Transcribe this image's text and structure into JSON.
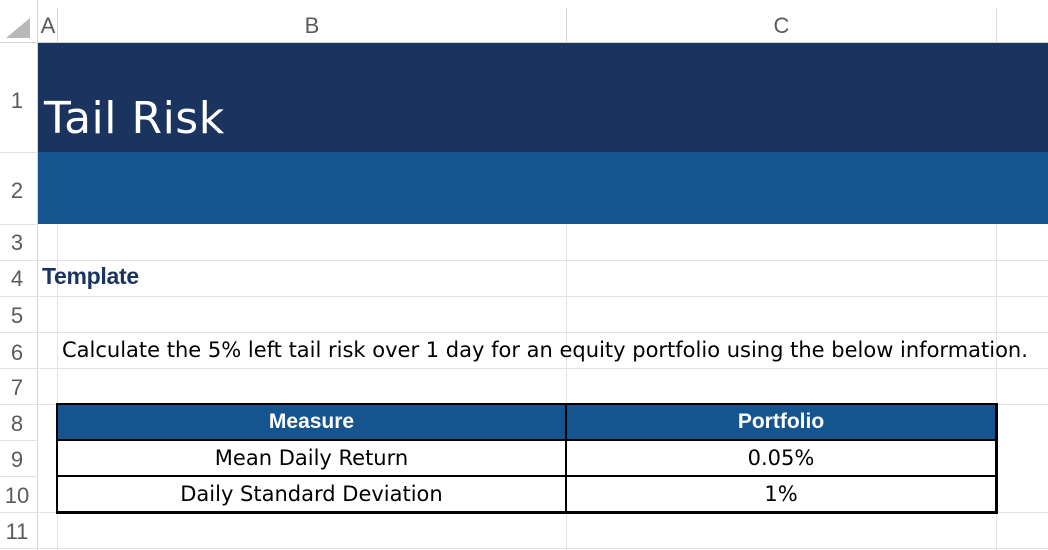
{
  "columns": [
    "A",
    "B",
    "C"
  ],
  "rows": [
    "1",
    "2",
    "3",
    "4",
    "5",
    "6",
    "7",
    "8",
    "9",
    "10",
    "11"
  ],
  "sheet": {
    "title": "Tail Risk",
    "section_label": "Template",
    "instruction": "Calculate the 5% left tail risk over 1 day for an equity portfolio using the below information."
  },
  "table": {
    "headers": [
      "Measure",
      "Portfolio"
    ],
    "rows": [
      [
        "Mean Daily Return",
        "0.05%"
      ],
      [
        "Daily Standard Deviation",
        "1%"
      ]
    ]
  },
  "colors": {
    "title_band": "#1b345f",
    "sub_band": "#16548f",
    "table_header": "#16548f"
  }
}
